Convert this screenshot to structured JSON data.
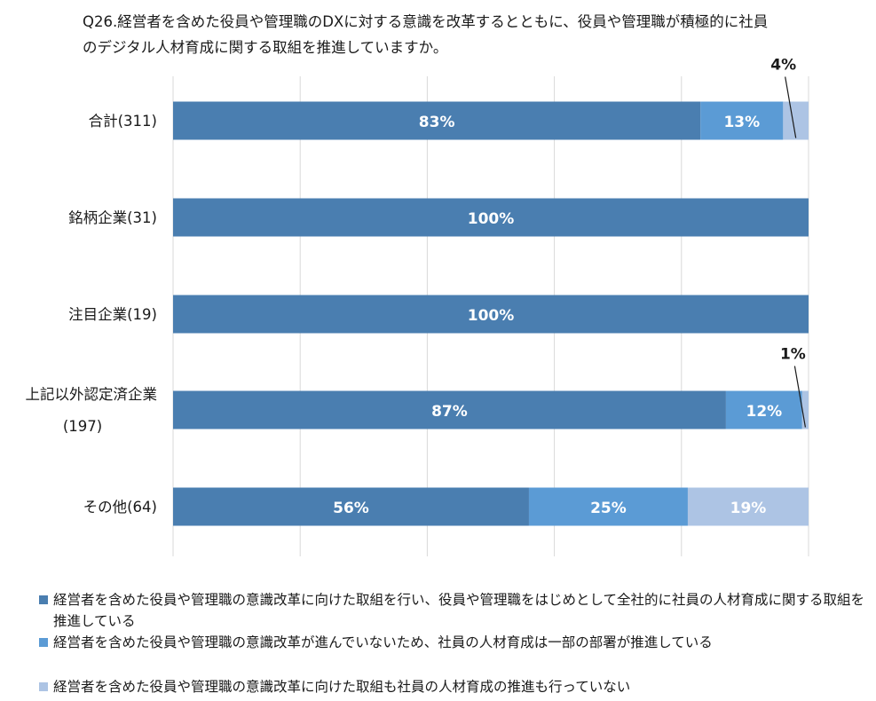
{
  "title": {
    "line1": "Q26.経営者を含めた役員や管理職のDXに対する意識を改革するとともに、役員や管理職が積極的に社員",
    "line2": "のデジタル人材育成に関する取組を推進していますか。"
  },
  "chart_data": {
    "type": "bar",
    "orientation": "horizontal",
    "stacked": true,
    "xlim": [
      0,
      100
    ],
    "grid": true,
    "legend_position": "bottom",
    "categories": [
      [
        "合計(311)"
      ],
      [
        "銘柄企業(31)"
      ],
      [
        "注目企業(19)"
      ],
      [
        "上記以外認定済企業",
        "(197)"
      ],
      [
        "その他(64)"
      ]
    ],
    "series": [
      {
        "name": "経営者を含めた役員や管理職の意識改革に向けた取組を行い、役員や管理職をはじめとして全社的に社員の人材育成に関する取組を推進している",
        "color": "#4a7eb0",
        "values": [
          83,
          100,
          100,
          87,
          56
        ],
        "labels": [
          "83%",
          "100%",
          "100%",
          "87%",
          "56%"
        ]
      },
      {
        "name": "経営者を含めた役員や管理職の意識改革が進んでいないため、社員の人材育成は一部の部署が推進している",
        "color": "#5b9bd5",
        "values": [
          13,
          0,
          0,
          12,
          25
        ],
        "labels": [
          "13%",
          "",
          "",
          "12%",
          "25%"
        ]
      },
      {
        "name": "経営者を含めた役員や管理職の意識改革に向けた取組も社員の人材育成の推進も行っていない",
        "color": "#adc4e4",
        "values": [
          4,
          0,
          0,
          1,
          19
        ],
        "labels": [
          "4%",
          "",
          "",
          "1%",
          "19%"
        ]
      }
    ]
  }
}
